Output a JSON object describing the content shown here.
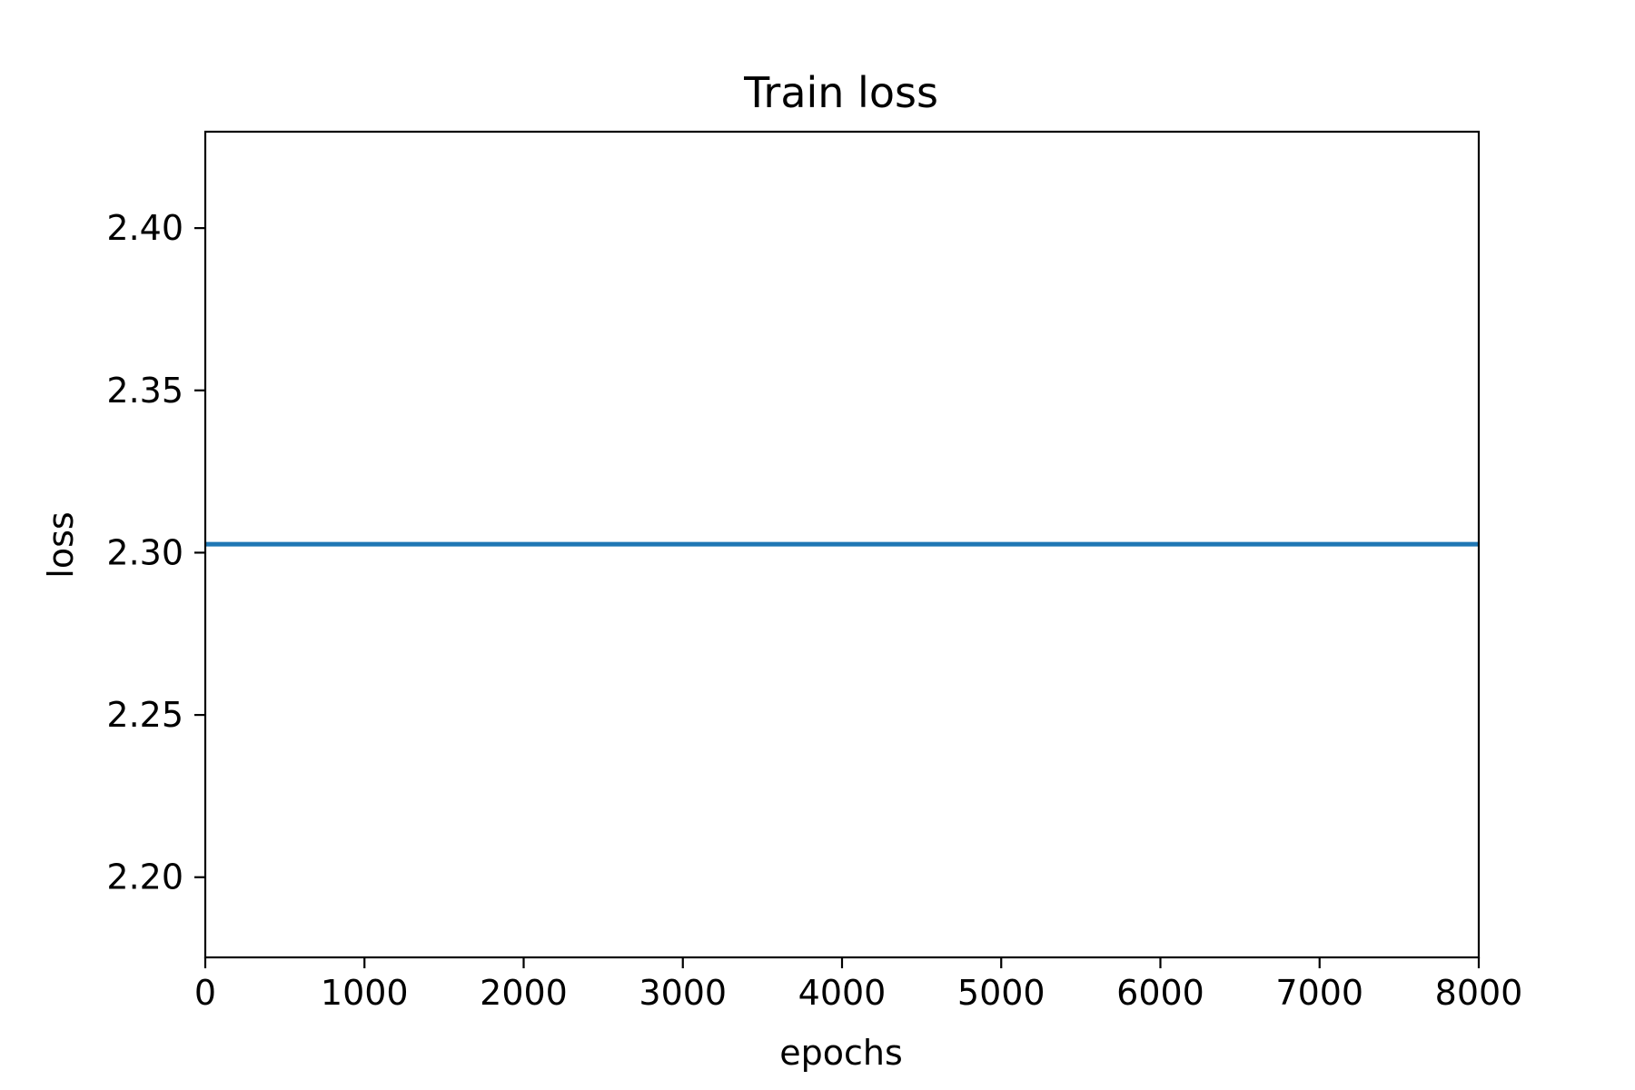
{
  "chart_data": {
    "type": "line",
    "title": "Train loss",
    "xlabel": "epochs",
    "ylabel": "loss",
    "xlim": [
      0,
      8000
    ],
    "ylim": [
      2.1753,
      2.4297
    ],
    "xticks": [
      0,
      1000,
      2000,
      3000,
      4000,
      5000,
      6000,
      7000,
      8000
    ],
    "xtick_labels": [
      "0",
      "1000",
      "2000",
      "3000",
      "4000",
      "5000",
      "6000",
      "7000",
      "8000"
    ],
    "yticks": [
      2.2,
      2.25,
      2.3,
      2.35,
      2.4
    ],
    "ytick_labels": [
      "2.20",
      "2.25",
      "2.30",
      "2.35",
      "2.40"
    ],
    "grid": false,
    "series": [
      {
        "color": "#1f77b4",
        "x": [
          0,
          1000,
          2000,
          3000,
          4000,
          5000,
          6000,
          7000,
          8000
        ],
        "y": [
          2.3026,
          2.3026,
          2.3026,
          2.3026,
          2.3026,
          2.3026,
          2.3026,
          2.3026,
          2.3026
        ]
      }
    ]
  }
}
